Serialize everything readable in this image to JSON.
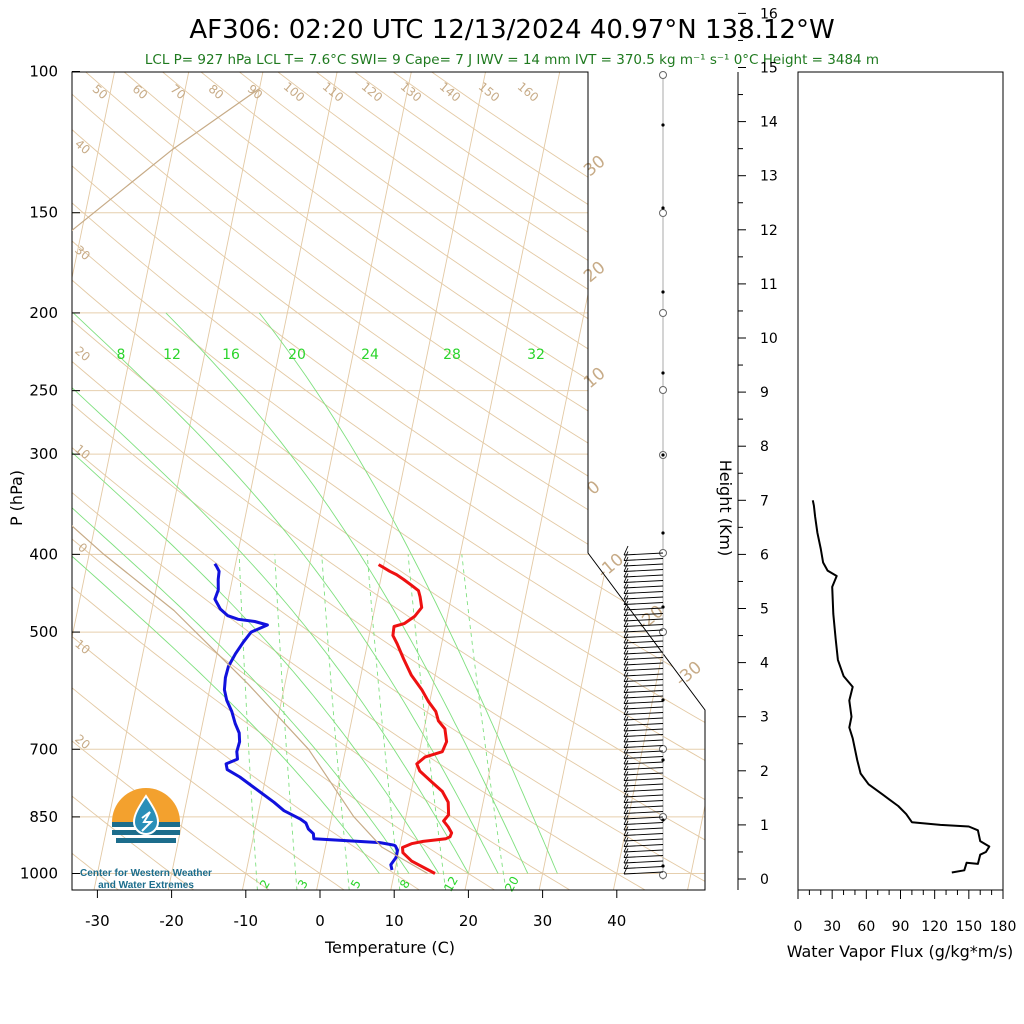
{
  "header": {
    "title": "AF306: 02:20 UTC 12/13/2024  40.97°N 138.12°W",
    "subtitle": "LCL P= 927 hPa  LCL T= 7.6°C  SWI= 9  Cape= 7 J  IWV = 14 mm  IVT = 370.5 kg m⁻¹ s⁻¹  0°C Height = 3484 m"
  },
  "logo": {
    "line1": "Center for Western Weather",
    "line2": "and Water Extremes"
  },
  "colors": {
    "temperature": "#ee1111",
    "dewpoint": "#1111dd",
    "dry_adiabat": "#c7ab87",
    "mixing_ratio": "#7fe07f",
    "isobar": "#e6cfae",
    "flux": "#000000"
  },
  "chart_data": [
    {
      "type": "line",
      "name": "skew-t",
      "xlabel": "Temperature (C)",
      "ylabel": "P (hPa)",
      "xlim": [
        -35,
        50
      ],
      "ylim": [
        1050,
        100
      ],
      "y_scale": "log",
      "x_ticks": [
        "-30",
        "-20",
        "-10",
        "0",
        "10",
        "20",
        "30",
        "40"
      ],
      "y_ticks": [
        "100",
        "150",
        "200",
        "250",
        "300",
        "400",
        "500",
        "700",
        "850",
        "1000"
      ],
      "isotherm_labels": [
        "-30",
        "-20",
        "-10",
        "0",
        "10",
        "20",
        "30"
      ],
      "dry_adiabat_labels": [
        "50",
        "60",
        "70",
        "80",
        "90",
        "100",
        "110",
        "120",
        "130",
        "140",
        "150",
        "160"
      ],
      "dry_adiabat_left_labels": [
        "40",
        "30",
        "20",
        "10",
        "0",
        "10",
        "20"
      ],
      "mixing_ratio_labels": [
        "8",
        "12",
        "16",
        "20",
        "24",
        "28",
        "32"
      ],
      "mixing_ratio_bottom_labels": [
        "2",
        "3",
        "5",
        "8",
        "12",
        "20"
      ],
      "series": [
        {
          "name": "temperature",
          "points": [
            [
              15.5,
              1000
            ],
            [
              12.0,
              965
            ],
            [
              10.6,
              942
            ],
            [
              10.4,
              928
            ],
            [
              11.5,
              918
            ],
            [
              13.0,
              912
            ],
            [
              16.0,
              905
            ],
            [
              16.5,
              900
            ],
            [
              16.6,
              890
            ],
            [
              16.0,
              875
            ],
            [
              15.2,
              860
            ],
            [
              15.7,
              845
            ],
            [
              15.3,
              815
            ],
            [
              14.2,
              790
            ],
            [
              12.6,
              770
            ],
            [
              10.6,
              745
            ],
            [
              10.0,
              730
            ],
            [
              10.9,
              716
            ],
            [
              13.1,
              705
            ],
            [
              13.4,
              685
            ],
            [
              12.8,
              660
            ],
            [
              11.7,
              645
            ],
            [
              11.1,
              628
            ],
            [
              9.8,
              610
            ],
            [
              8.6,
              590
            ],
            [
              6.8,
              566
            ],
            [
              5.3,
              540
            ],
            [
              4.0,
              517
            ],
            [
              3.2,
              505
            ],
            [
              3.1,
              492
            ],
            [
              4.4,
              488
            ],
            [
              5.6,
              478
            ],
            [
              6.3,
              466
            ],
            [
              5.8,
              452
            ],
            [
              5.4,
              444
            ],
            [
              4.3,
              437
            ],
            [
              3.1,
              430
            ],
            [
              2.0,
              424
            ],
            [
              1.0,
              420
            ],
            [
              -0.7,
              412
            ]
          ]
        },
        {
          "name": "dewpoint",
          "points": [
            [
              9.6,
              990
            ],
            [
              9.3,
              975
            ],
            [
              9.8,
              955
            ],
            [
              9.8,
              935
            ],
            [
              9.4,
              924
            ],
            [
              9.2,
              922
            ],
            [
              7.2,
              915
            ],
            [
              -1.8,
              905
            ],
            [
              -2.0,
              892
            ],
            [
              -2.8,
              880
            ],
            [
              -3.3,
              865
            ],
            [
              -4.2,
              855
            ],
            [
              -6.6,
              835
            ],
            [
              -8.2,
              815
            ],
            [
              -11.4,
              780
            ],
            [
              -13.5,
              758
            ],
            [
              -15.4,
              742
            ],
            [
              -15.7,
              730
            ],
            [
              -14.3,
              720
            ],
            [
              -14.6,
              705
            ],
            [
              -14.5,
              685
            ],
            [
              -14.8,
              668
            ],
            [
              -15.6,
              650
            ],
            [
              -16.4,
              628
            ],
            [
              -17.4,
              608
            ],
            [
              -18.0,
              590
            ],
            [
              -18.2,
              570
            ],
            [
              -18.1,
              552
            ],
            [
              -17.5,
              532
            ],
            [
              -16.8,
              515
            ],
            [
              -16.0,
              500
            ],
            [
              -14.0,
              490
            ],
            [
              -15.8,
              485
            ],
            [
              -18.1,
              482
            ],
            [
              -19.6,
              477
            ],
            [
              -20.8,
              468
            ],
            [
              -21.8,
              455
            ],
            [
              -21.6,
              443
            ],
            [
              -21.9,
              430
            ],
            [
              -22.0,
              420
            ],
            [
              -22.5,
              414
            ],
            [
              -22.8,
              411
            ]
          ]
        },
        {
          "name": "parcel",
          "points": [
            [
              14.5,
              1000
            ],
            [
              7.6,
              927
            ],
            [
              3.0,
              850
            ],
            [
              -5.0,
              700
            ],
            [
              -15.0,
              580
            ],
            [
              -27.0,
              470
            ],
            [
              -38.0,
              400
            ],
            [
              -50.0,
              330
            ],
            [
              -62.0,
              270
            ],
            [
              -75.0,
              230
            ],
            [
              -66.0,
              200
            ],
            [
              -52.0,
              160
            ],
            [
              -40.0,
              125
            ],
            [
              -30.0,
              105
            ]
          ]
        }
      ]
    },
    {
      "type": "line",
      "name": "water-vapor-flux",
      "xlabel": "Water Vapor Flux (g/kg*m/s)",
      "ylabel": "Height (Km)",
      "xlim": [
        0,
        180
      ],
      "ylim": [
        0,
        16.5
      ],
      "x_ticks": [
        "0",
        "30",
        "60",
        "90",
        "120",
        "150",
        "180"
      ],
      "y_ticks": [
        "0",
        "1",
        "2",
        "3",
        "4",
        "5",
        "6",
        "7",
        "8",
        "9",
        "10",
        "11",
        "12",
        "13",
        "14",
        "15",
        "16"
      ],
      "series": [
        {
          "name": "water-vapor-flux",
          "points": [
            [
              135,
              0.12
            ],
            [
              146,
              0.16
            ],
            [
              148,
              0.3
            ],
            [
              158,
              0.28
            ],
            [
              160,
              0.45
            ],
            [
              165,
              0.5
            ],
            [
              168,
              0.6
            ],
            [
              160,
              0.7
            ],
            [
              158,
              0.9
            ],
            [
              150,
              0.97
            ],
            [
              125,
              1.0
            ],
            [
              100,
              1.05
            ],
            [
              95,
              1.2
            ],
            [
              88,
              1.35
            ],
            [
              75,
              1.55
            ],
            [
              62,
              1.75
            ],
            [
              55,
              1.95
            ],
            [
              52,
              2.2
            ],
            [
              48,
              2.6
            ],
            [
              45,
              2.8
            ],
            [
              47,
              3.0
            ],
            [
              45,
              3.3
            ],
            [
              48,
              3.55
            ],
            [
              40,
              3.75
            ],
            [
              35,
              4.05
            ],
            [
              33,
              4.45
            ],
            [
              31,
              4.9
            ],
            [
              30,
              5.4
            ],
            [
              34,
              5.6
            ],
            [
              26,
              5.7
            ],
            [
              22,
              5.85
            ],
            [
              20,
              6.1
            ],
            [
              17,
              6.4
            ],
            [
              15,
              6.7
            ],
            [
              14,
              6.9
            ],
            [
              13,
              7.0
            ]
          ]
        }
      ]
    }
  ]
}
